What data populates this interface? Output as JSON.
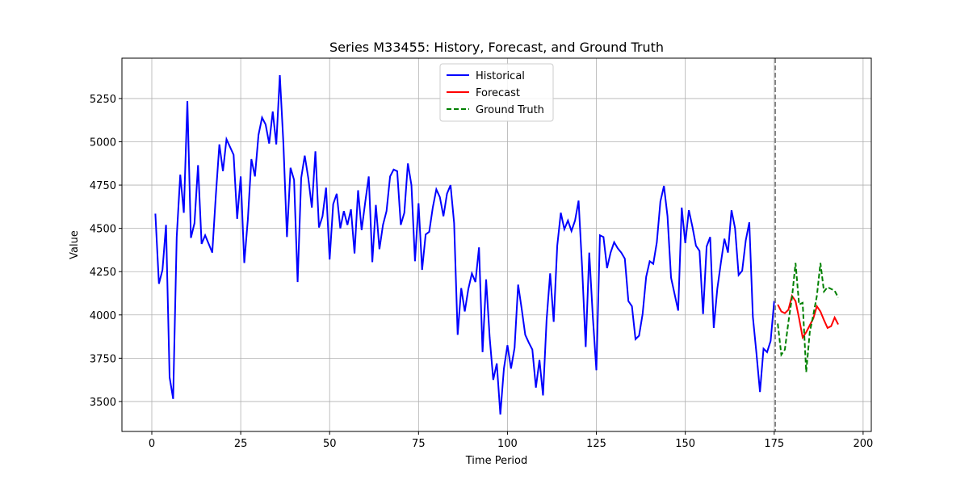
{
  "chart_data": {
    "type": "line",
    "title": "Series M33455: History, Forecast, and Ground Truth",
    "x_label": "Time Period",
    "y_label": "Value",
    "xlim": [
      -8.4,
      202.3
    ],
    "ylim": [
      3327,
      5483
    ],
    "xticks": [
      0,
      25,
      50,
      75,
      100,
      125,
      150,
      175,
      200
    ],
    "yticks": [
      3500,
      3750,
      4000,
      4250,
      4500,
      4750,
      5000,
      5250
    ],
    "grid": true,
    "legend": "upper center",
    "vline": {
      "x": 175.3,
      "color": "#808080"
    },
    "series": [
      {
        "name": "Historical",
        "color": "#0000ff",
        "dash": "solid",
        "x": [
          1,
          2,
          3,
          4,
          5,
          6,
          7,
          8,
          9,
          10,
          11,
          12,
          13,
          14,
          15,
          16,
          17,
          18,
          19,
          20,
          21,
          22,
          23,
          24,
          25,
          26,
          27,
          28,
          29,
          30,
          31,
          32,
          33,
          34,
          35,
          36,
          37,
          38,
          39,
          40,
          41,
          42,
          43,
          44,
          45,
          46,
          47,
          48,
          49,
          50,
          51,
          52,
          53,
          54,
          55,
          56,
          57,
          58,
          59,
          60,
          61,
          62,
          63,
          64,
          65,
          66,
          67,
          68,
          69,
          70,
          71,
          72,
          73,
          74,
          75,
          76,
          77,
          78,
          79,
          80,
          81,
          82,
          83,
          84,
          85,
          86,
          87,
          88,
          89,
          90,
          91,
          92,
          93,
          94,
          95,
          96,
          97,
          98,
          99,
          100,
          101,
          102,
          103,
          104,
          105,
          106,
          107,
          108,
          109,
          110,
          111,
          112,
          113,
          114,
          115,
          116,
          117,
          118,
          119,
          120,
          121,
          122,
          123,
          124,
          125,
          126,
          127,
          128,
          129,
          130,
          131,
          132,
          133,
          134,
          135,
          136,
          137,
          138,
          139,
          140,
          141,
          142,
          143,
          144,
          145,
          146,
          147,
          148,
          149,
          150,
          151,
          152,
          153,
          154,
          155,
          156,
          157,
          158,
          159,
          160,
          161,
          162,
          163,
          164,
          165,
          166,
          167,
          168,
          169,
          170,
          171,
          172,
          173,
          174,
          175
        ],
        "values": [
          4585,
          4180,
          4260,
          4520,
          3640,
          3515,
          4450,
          4810,
          4590,
          5235,
          4445,
          4530,
          4865,
          4410,
          4460,
          4410,
          4360,
          4690,
          4985,
          4830,
          5015,
          4970,
          4925,
          4555,
          4800,
          4300,
          4550,
          4900,
          4800,
          5040,
          5140,
          5100,
          4990,
          5175,
          4985,
          5385,
          4990,
          4450,
          4850,
          4780,
          4190,
          4790,
          4920,
          4790,
          4620,
          4945,
          4505,
          4570,
          4735,
          4320,
          4640,
          4700,
          4500,
          4600,
          4520,
          4610,
          4355,
          4720,
          4490,
          4650,
          4800,
          4305,
          4635,
          4380,
          4520,
          4600,
          4800,
          4840,
          4830,
          4520,
          4590,
          4875,
          4750,
          4310,
          4645,
          4260,
          4465,
          4480,
          4620,
          4725,
          4680,
          4570,
          4700,
          4750,
          4530,
          3885,
          4155,
          4020,
          4150,
          4240,
          4190,
          4390,
          3785,
          4205,
          3870,
          3625,
          3720,
          3425,
          3690,
          3825,
          3690,
          3810,
          4175,
          4035,
          3885,
          3840,
          3800,
          3580,
          3740,
          3535,
          3970,
          4240,
          3960,
          4400,
          4590,
          4495,
          4545,
          4485,
          4545,
          4660,
          4270,
          3815,
          4360,
          3990,
          3680,
          4460,
          4450,
          4270,
          4360,
          4420,
          4385,
          4360,
          4325,
          4080,
          4050,
          3860,
          3880,
          4005,
          4220,
          4310,
          4295,
          4420,
          4655,
          4745,
          4570,
          4215,
          4120,
          4025,
          4620,
          4415,
          4605,
          4510,
          4400,
          4370,
          4005,
          4395,
          4450,
          3925,
          4150,
          4300,
          4440,
          4360,
          4605,
          4500,
          4230,
          4255,
          4430,
          4535,
          3990,
          3780,
          3555,
          3805,
          3785,
          3850,
          4080
        ]
      },
      {
        "name": "Forecast",
        "color": "#ff0000",
        "dash": "solid",
        "x": [
          176,
          177,
          178,
          179,
          180,
          181,
          182,
          183,
          184,
          185,
          186,
          187,
          188,
          189,
          190,
          191,
          192,
          193
        ],
        "values": [
          4060,
          4020,
          4010,
          4030,
          4110,
          4080,
          3980,
          3870,
          3900,
          3940,
          3980,
          4050,
          4020,
          3970,
          3925,
          3935,
          3985,
          3945
        ]
      },
      {
        "name": "Ground Truth",
        "color": "#008000",
        "dash": "dashed",
        "x": [
          176,
          177,
          178,
          179,
          180,
          181,
          182,
          183,
          184,
          185,
          186,
          187,
          188,
          189,
          190,
          191,
          192,
          193
        ],
        "values": [
          3950,
          3770,
          3800,
          3960,
          4100,
          4300,
          4060,
          4070,
          3670,
          3900,
          4000,
          4110,
          4300,
          4135,
          4160,
          4150,
          4140,
          4100
        ]
      }
    ]
  }
}
